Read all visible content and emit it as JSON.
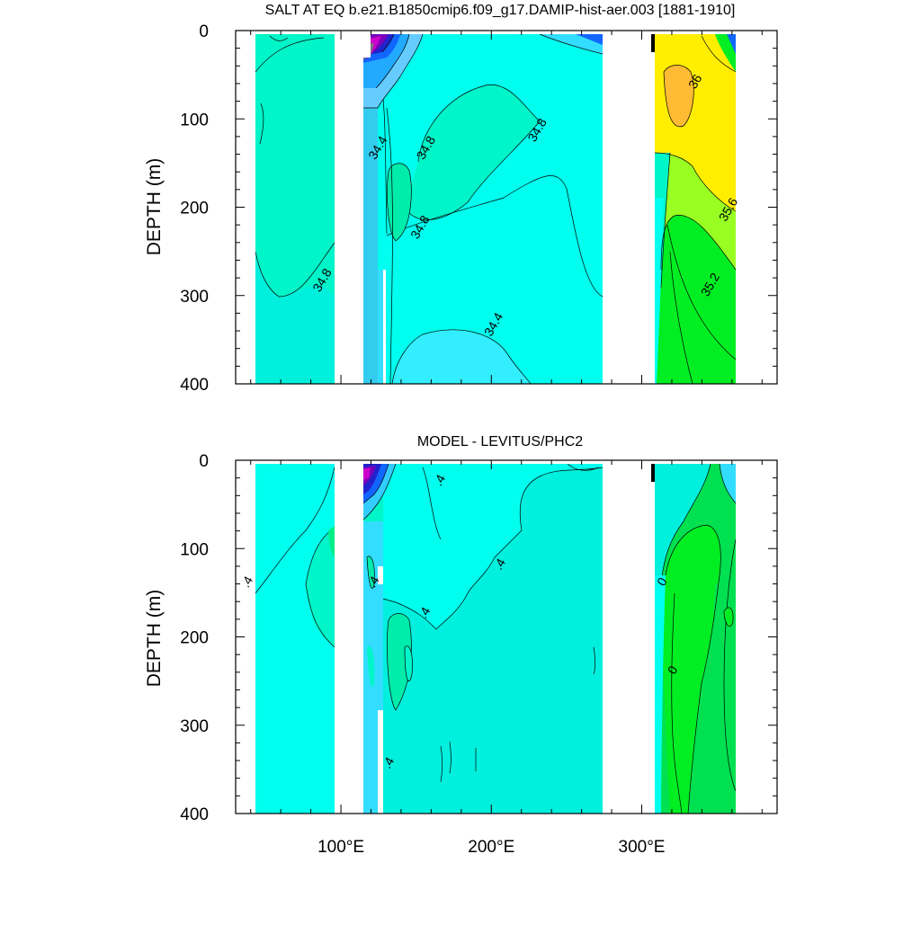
{
  "colors": {
    "cyan": "#00ffee",
    "aqua": "#00f0dd",
    "mint": "#00f5c8",
    "teal_green": "#00ecaa",
    "green": "#00e050",
    "bright_green": "#00ee22",
    "lime": "#99ff22",
    "yellow": "#ffee00",
    "light_yellow": "#ffff33",
    "orange": "#ffbb33",
    "sky": "#33ddff",
    "blue": "#1166ff",
    "deep_blue": "#2222cc",
    "purple": "#7700bb",
    "magenta": "#cc00cc",
    "gray": "#777777",
    "land": "#ffffff"
  },
  "chart_data": [
    {
      "type": "heatmap",
      "title": "SALT AT EQ b.e21.B1850cmip6.f09_g17.DAMIP-hist-aer.003 [1881-1910]",
      "xlabel": "",
      "ylabel": "DEPTH (m)",
      "xlim": [
        30,
        390
      ],
      "ylim": [
        400,
        0
      ],
      "y_ticks": [
        "0",
        "100",
        "200",
        "300",
        "400"
      ],
      "x_ticks": [
        "100°E",
        "200°E",
        "300°E"
      ],
      "x_tick_values": [
        100,
        200,
        300
      ],
      "contour_labels": [
        {
          "text": "34.8",
          "lon": 90,
          "depth": 285
        },
        {
          "text": "34.4",
          "lon": 127,
          "depth": 135
        },
        {
          "text": "34.8",
          "lon": 159,
          "depth": 135
        },
        {
          "text": "34.8",
          "lon": 233,
          "depth": 115
        },
        {
          "text": "34.8",
          "lon": 155,
          "depth": 225
        },
        {
          "text": "34.4",
          "lon": 204,
          "depth": 335
        },
        {
          "text": "36",
          "lon": 338,
          "depth": 60
        },
        {
          "text": "35.6",
          "lon": 360,
          "depth": 205
        },
        {
          "text": "35.2",
          "lon": 348,
          "depth": 290
        }
      ]
    },
    {
      "type": "heatmap",
      "title": "MODEL - LEVITUS/PHC2",
      "xlabel": "",
      "ylabel": "DEPTH (m)",
      "xlim": [
        30,
        390
      ],
      "ylim": [
        400,
        0
      ],
      "y_ticks": [
        "0",
        "100",
        "200",
        "300",
        "400"
      ],
      "x_ticks": [
        "100°E",
        "200°E",
        "300°E"
      ],
      "x_tick_values": [
        100,
        200,
        300
      ],
      "contour_labels": [
        {
          "text": ".4",
          "lon": 40,
          "depth": 140
        },
        {
          "text": ".4",
          "lon": 124,
          "depth": 140
        },
        {
          "text": ".4",
          "lon": 168,
          "depth": 25
        },
        {
          "text": ".4",
          "lon": 208,
          "depth": 120
        },
        {
          "text": ".4",
          "lon": 158,
          "depth": 175
        },
        {
          "text": ".4",
          "lon": 134,
          "depth": 345
        },
        {
          "text": "0",
          "lon": 316,
          "depth": 140
        },
        {
          "text": "0",
          "lon": 323,
          "depth": 240
        }
      ]
    }
  ]
}
